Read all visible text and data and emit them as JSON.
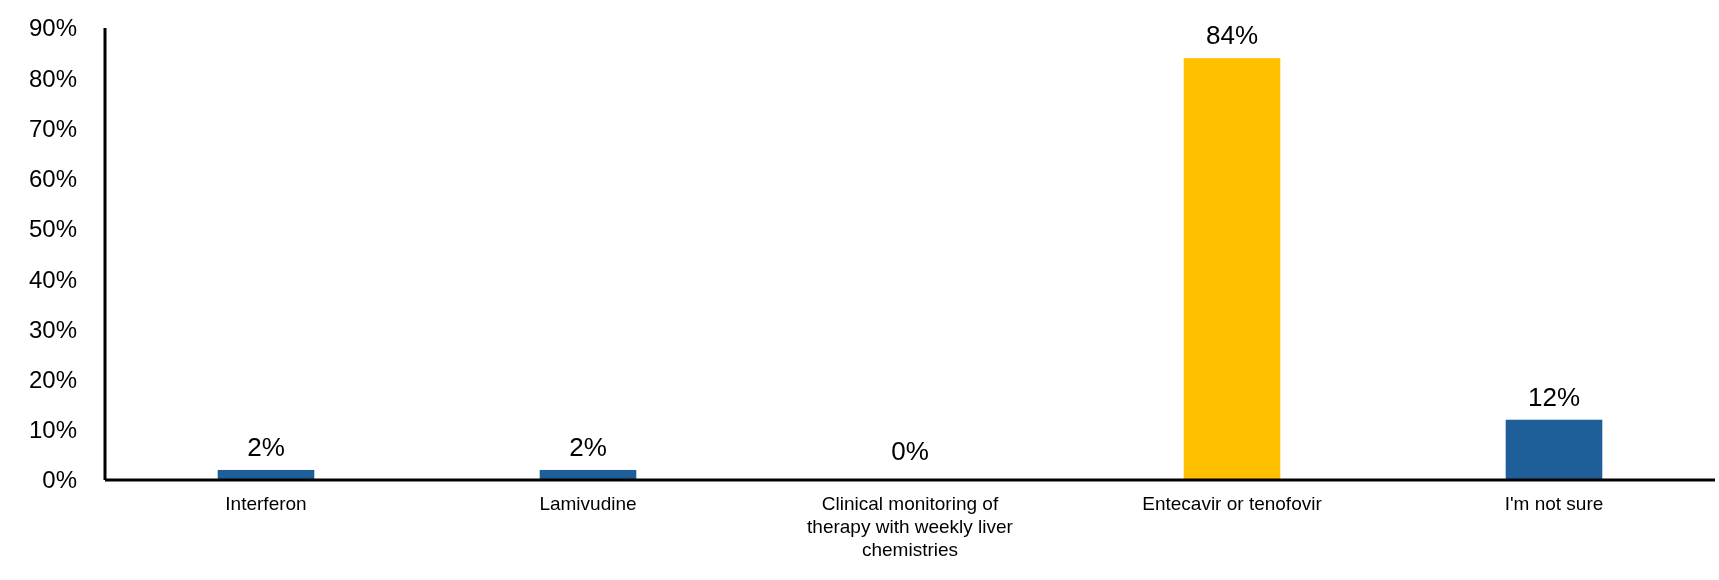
{
  "chart_data": {
    "type": "bar",
    "categories": [
      "Interferon",
      "Lamivudine",
      "Clinical monitoring of therapy with weekly liver chemistries",
      "Entecavir or tenofovir",
      "I'm not sure"
    ],
    "values": [
      2,
      2,
      0,
      84,
      12
    ],
    "colors": [
      "#1f5f99",
      "#1f5f99",
      "#1f5f99",
      "#ffc000",
      "#1f5f99"
    ],
    "value_labels": [
      "2%",
      "2%",
      "0%",
      "84%",
      "12%"
    ],
    "ylim": [
      0,
      90
    ],
    "yticks": [
      {
        "value": 0,
        "label": "0%"
      },
      {
        "value": 10,
        "label": "10%"
      },
      {
        "value": 20,
        "label": "20%"
      },
      {
        "value": 30,
        "label": "30%"
      },
      {
        "value": 40,
        "label": "40%"
      },
      {
        "value": 50,
        "label": "50%"
      },
      {
        "value": 60,
        "label": "60%"
      },
      {
        "value": 70,
        "label": "70%"
      },
      {
        "value": 80,
        "label": "80%"
      },
      {
        "value": 90,
        "label": "90%"
      }
    ],
    "grid": false
  }
}
